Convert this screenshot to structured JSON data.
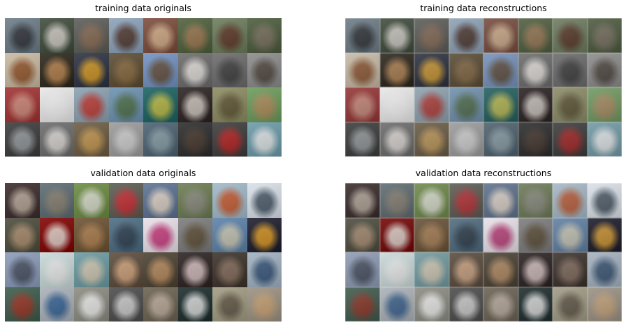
{
  "panels": [
    {
      "id": "train-orig",
      "title": "training data originals",
      "tiles": [
        [
          "#6a7a86",
          "#2b2e33"
        ],
        [
          "#3d4a3a",
          "#d8d3cc"
        ],
        [
          "#5a5a56",
          "#8a6a52"
        ],
        [
          "#8aa0b8",
          "#4a2e22"
        ],
        [
          "#7a4a3a",
          "#d8b48e"
        ],
        [
          "#4c5e3a",
          "#a07850"
        ],
        [
          "#6a7a5a",
          "#5a3020"
        ],
        [
          "#4a5a3a",
          "#7a7060"
        ],
        [
          "#c8b8a0",
          "#8a4a20"
        ],
        [
          "#2a2418",
          "#c08850"
        ],
        [
          "#2a3040",
          "#e0a020"
        ],
        [
          "#5a4a30",
          "#8a6a40"
        ],
        [
          "#7090c0",
          "#604830"
        ],
        [
          "#6a6a6a",
          "#e8e4e0"
        ],
        [
          "#6a6a6a",
          "#3a3a3a"
        ],
        [
          "#8a8a8a",
          "#4a4038"
        ],
        [
          "#a03030",
          "#d09080"
        ],
        [
          "#e8e8e8",
          "#f0f0f0"
        ],
        [
          "#8aa0b0",
          "#c03028"
        ],
        [
          "#6a90b0",
          "#4a6a40"
        ],
        [
          "#1a6060",
          "#c8c040"
        ],
        [
          "#2a2020",
          "#d8d0c8"
        ],
        [
          "#8a8a60",
          "#5a5030"
        ],
        [
          "#6a9a5a",
          "#b08858"
        ],
        [
          "#3a3a3a",
          "#9aa0a4"
        ],
        [
          "#6a6a6a",
          "#e0dcd8"
        ],
        [
          "#6a5a40",
          "#c89a50"
        ],
        [
          "#9a9a9a",
          "#d0d0d0"
        ],
        [
          "#4a6070",
          "#8aa0a8"
        ],
        [
          "#2a2a2a",
          "#4a3a30"
        ],
        [
          "#3a3a3a",
          "#c02020"
        ],
        [
          "#6a9aa8",
          "#e8e8e8"
        ]
      ]
    },
    {
      "id": "train-recon",
      "title": "training data reconstructions",
      "tiles": [
        [
          "#6a7a86",
          "#2b2e33"
        ],
        [
          "#3d4a3a",
          "#d8d3cc"
        ],
        [
          "#5a5a56",
          "#8a6a52"
        ],
        [
          "#8aa0b8",
          "#4a2e22"
        ],
        [
          "#7a4a3a",
          "#d8b48e"
        ],
        [
          "#4c5e3a",
          "#a07850"
        ],
        [
          "#6a7a5a",
          "#5a3020"
        ],
        [
          "#4a5a3a",
          "#7a7060"
        ],
        [
          "#c8b8a0",
          "#8a4a20"
        ],
        [
          "#2a2418",
          "#c08850"
        ],
        [
          "#2a3040",
          "#e0a020"
        ],
        [
          "#5a4a30",
          "#8a6a40"
        ],
        [
          "#7090c0",
          "#604830"
        ],
        [
          "#6a6a6a",
          "#e8e4e0"
        ],
        [
          "#6a6a6a",
          "#3a3a3a"
        ],
        [
          "#8a8a8a",
          "#4a4038"
        ],
        [
          "#a03030",
          "#d09080"
        ],
        [
          "#e8e8e8",
          "#f0f0f0"
        ],
        [
          "#8aa0b0",
          "#c03028"
        ],
        [
          "#6a90b0",
          "#4a6a40"
        ],
        [
          "#1a6060",
          "#c8c040"
        ],
        [
          "#2a2020",
          "#d8d0c8"
        ],
        [
          "#8a8a60",
          "#5a5030"
        ],
        [
          "#6a9a5a",
          "#b08858"
        ],
        [
          "#3a3a3a",
          "#9aa0a4"
        ],
        [
          "#6a6a6a",
          "#e0dcd8"
        ],
        [
          "#6a5a40",
          "#c89a50"
        ],
        [
          "#9a9a9a",
          "#d0d0d0"
        ],
        [
          "#4a6070",
          "#8aa0a8"
        ],
        [
          "#2a2a2a",
          "#4a3a30"
        ],
        [
          "#3a3a3a",
          "#c02020"
        ],
        [
          "#6a9aa8",
          "#e8e8e8"
        ]
      ]
    },
    {
      "id": "val-orig",
      "title": "validation data originals",
      "tiles": [
        [
          "#3a2a2a",
          "#c0b0a0"
        ],
        [
          "#5a6a70",
          "#8a8070"
        ],
        [
          "#6a8a40",
          "#e0e0d8"
        ],
        [
          "#5a5a50",
          "#d02830"
        ],
        [
          "#5a7090",
          "#e8d8c8"
        ],
        [
          "#6a7a50",
          "#8a8a80"
        ],
        [
          "#a0b8c8",
          "#c85020"
        ],
        [
          "#d8e0e8",
          "#3a4a5a"
        ],
        [
          "#4a4a3a",
          "#b09070"
        ],
        [
          "#800000",
          "#e8e0d8"
        ],
        [
          "#6a5030",
          "#b08050"
        ],
        [
          "#4a6a80",
          "#2a3a4a"
        ],
        [
          "#e8e0e8",
          "#c02870"
        ],
        [
          "#7a7a7a",
          "#5a4a30"
        ],
        [
          "#5a80a8",
          "#d0c8b0"
        ],
        [
          "#1a1a2a",
          "#e8a020"
        ],
        [
          "#8a9ab8",
          "#404858"
        ],
        [
          "#c8d8d8",
          "#e8e8e8"
        ],
        [
          "#6a9aa0",
          "#d8c8b0"
        ],
        [
          "#5a4a3a",
          "#d8a880"
        ],
        [
          "#4a4030",
          "#c09060"
        ],
        [
          "#2a2020",
          "#e0c8c8"
        ],
        [
          "#3a3028",
          "#8a7060"
        ],
        [
          "#a0b0c0",
          "#2a4a70"
        ],
        [
          "#3a5a4a",
          "#a03020"
        ],
        [
          "#a8b0b8",
          "#2a5a90"
        ],
        [
          "#8a8a80",
          "#f0f0f0"
        ],
        [
          "#4a4a4a",
          "#d8d8d8"
        ],
        [
          "#6a6050",
          "#c0b0a0"
        ],
        [
          "#1a2a2a",
          "#e8e8e8"
        ],
        [
          "#a09a80",
          "#5a5040"
        ],
        [
          "#9a9080",
          "#c8a070"
        ]
      ]
    },
    {
      "id": "val-recon",
      "title": "validation data reconstructions",
      "tiles": [
        [
          "#3a2a2a",
          "#c0b0a0"
        ],
        [
          "#5a6a70",
          "#8a8070"
        ],
        [
          "#6a8a40",
          "#e0e0d8"
        ],
        [
          "#5a5a50",
          "#d02830"
        ],
        [
          "#5a7090",
          "#e8d8c8"
        ],
        [
          "#6a7a50",
          "#8a8a80"
        ],
        [
          "#a0b8c8",
          "#c85020"
        ],
        [
          "#d8e0e8",
          "#3a4a5a"
        ],
        [
          "#4a4a3a",
          "#b09070"
        ],
        [
          "#800000",
          "#e8e0d8"
        ],
        [
          "#6a5030",
          "#b08050"
        ],
        [
          "#4a6a80",
          "#2a3a4a"
        ],
        [
          "#e8e0e8",
          "#c02870"
        ],
        [
          "#7a7a7a",
          "#5a4a30"
        ],
        [
          "#5a80a8",
          "#d0c8b0"
        ],
        [
          "#1a1a2a",
          "#e8a020"
        ],
        [
          "#8a9ab8",
          "#404858"
        ],
        [
          "#c8d8d8",
          "#e8e8e8"
        ],
        [
          "#6a9aa0",
          "#d8c8b0"
        ],
        [
          "#5a4a3a",
          "#d8a880"
        ],
        [
          "#4a4030",
          "#c09060"
        ],
        [
          "#2a2020",
          "#e0c8c8"
        ],
        [
          "#3a3028",
          "#8a7060"
        ],
        [
          "#a0b0c0",
          "#2a4a70"
        ],
        [
          "#3a5a4a",
          "#a03020"
        ],
        [
          "#a8b0b8",
          "#2a5a90"
        ],
        [
          "#8a8a80",
          "#f0f0f0"
        ],
        [
          "#4a4a4a",
          "#d8d8d8"
        ],
        [
          "#6a6050",
          "#c0b0a0"
        ],
        [
          "#1a2a2a",
          "#e8e8e8"
        ],
        [
          "#a09a80",
          "#5a5040"
        ],
        [
          "#9a9080",
          "#c8a070"
        ]
      ]
    }
  ]
}
